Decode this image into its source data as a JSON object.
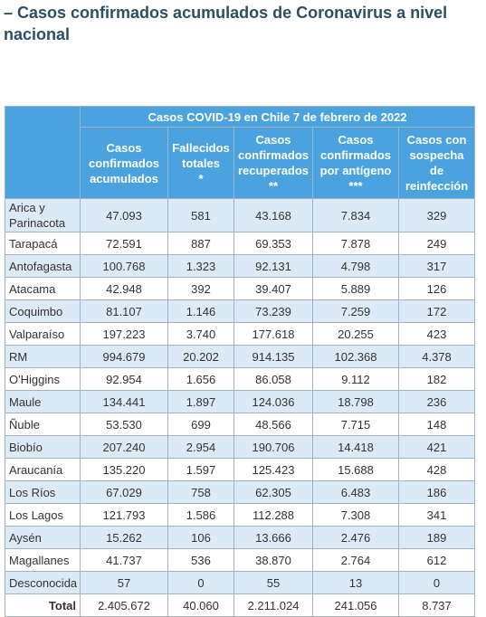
{
  "header": {
    "title": "– Casos confirmados acumulados de Coronavirus a nivel nacional"
  },
  "table": {
    "caption": "Casos COVID-19 en Chile 7 de  febrero de 2022",
    "columns": [
      {
        "text": "Casos confirmados acumulados",
        "note": null
      },
      {
        "text": "Fallecidos totales",
        "note": "*"
      },
      {
        "text": "Casos confirmados recuperados",
        "note": "**"
      },
      {
        "text": "Casos confirmados por antígeno",
        "note": "***"
      },
      {
        "text": "Casos con sospecha de reinfección",
        "note": null
      }
    ],
    "rows": [
      [
        "Arica y Parinacota",
        "47.093",
        "581",
        "43.168",
        "7.834",
        "329"
      ],
      [
        "Tarapacá",
        "72.591",
        "887",
        "69.353",
        "7.878",
        "249"
      ],
      [
        "Antofagasta",
        "100.768",
        "1.323",
        "92.131",
        "4.798",
        "317"
      ],
      [
        "Atacama",
        "42.948",
        "392",
        "39.407",
        "5.889",
        "126"
      ],
      [
        "Coquimbo",
        "81.107",
        "1.146",
        "73.239",
        "7.259",
        "172"
      ],
      [
        "Valparaíso",
        "197.223",
        "3.740",
        "177.618",
        "20.255",
        "423"
      ],
      [
        "RM",
        "994.679",
        "20.202",
        "914.135",
        "102.368",
        "4.378"
      ],
      [
        "O'Higgins",
        "92.954",
        "1.656",
        "86.058",
        "9.112",
        "182"
      ],
      [
        "Maule",
        "134.441",
        "1.897",
        "124.036",
        "18.798",
        "236"
      ],
      [
        "Ñuble",
        "53.530",
        "699",
        "48.566",
        "7.715",
        "148"
      ],
      [
        "Biobío",
        "207.240",
        "2.954",
        "190.706",
        "14.418",
        "421"
      ],
      [
        "Araucanía",
        "135.220",
        "1.597",
        "125.423",
        "15.688",
        "428"
      ],
      [
        "Los Ríos",
        "67.029",
        "758",
        "62.305",
        "6.483",
        "186"
      ],
      [
        "Los Lagos",
        "121.793",
        "1.586",
        "112.288",
        "7.308",
        "341"
      ],
      [
        "Aysén",
        "15.262",
        "106",
        "13.666",
        "2.476",
        "189"
      ],
      [
        "Magallanes",
        "41.737",
        "536",
        "38.870",
        "2.764",
        "612"
      ],
      [
        "Desconocida",
        "57",
        "0",
        "55",
        "13",
        "0"
      ]
    ],
    "total": [
      "Total",
      "2.405.672",
      "40.060",
      "2.211.024",
      "241.056",
      "8.737"
    ]
  }
}
